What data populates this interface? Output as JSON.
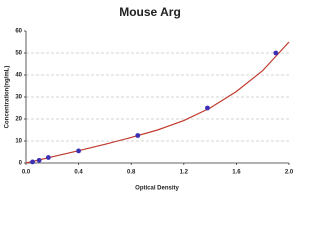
{
  "chart_data": {
    "type": "scatter",
    "title": "Mouse Arg",
    "x_label": "Optical Density",
    "y_label": "Concentration(ng/mL)",
    "xlim": [
      0,
      2
    ],
    "ylim": [
      0,
      60
    ],
    "xticks": [
      {
        "value": 0,
        "label": "0.0"
      },
      0.4,
      0.8,
      1.2,
      1.6,
      {
        "value": 2,
        "label": "2.0"
      }
    ],
    "yticks": [
      0,
      10,
      20,
      30,
      40,
      50,
      60
    ],
    "grid": true,
    "series": [
      {
        "mode": "line",
        "color": "#c0392b",
        "x": [
          0,
          0.2,
          0.4,
          0.6,
          0.8,
          1.0,
          1.2,
          1.4,
          1.6,
          1.8,
          2.0
        ],
        "values": [
          0,
          2.8,
          5.6,
          8.5,
          11.6,
          15,
          19.3,
          25,
          32.5,
          42,
          55
        ]
      },
      {
        "mode": "markers",
        "color": "#3b2fb5",
        "x": [
          0.05,
          0.1,
          0.17,
          0.4,
          0.85,
          1.38,
          1.9
        ],
        "values": [
          0.5,
          1.2,
          2.5,
          5.5,
          12.5,
          25,
          50
        ]
      }
    ]
  }
}
